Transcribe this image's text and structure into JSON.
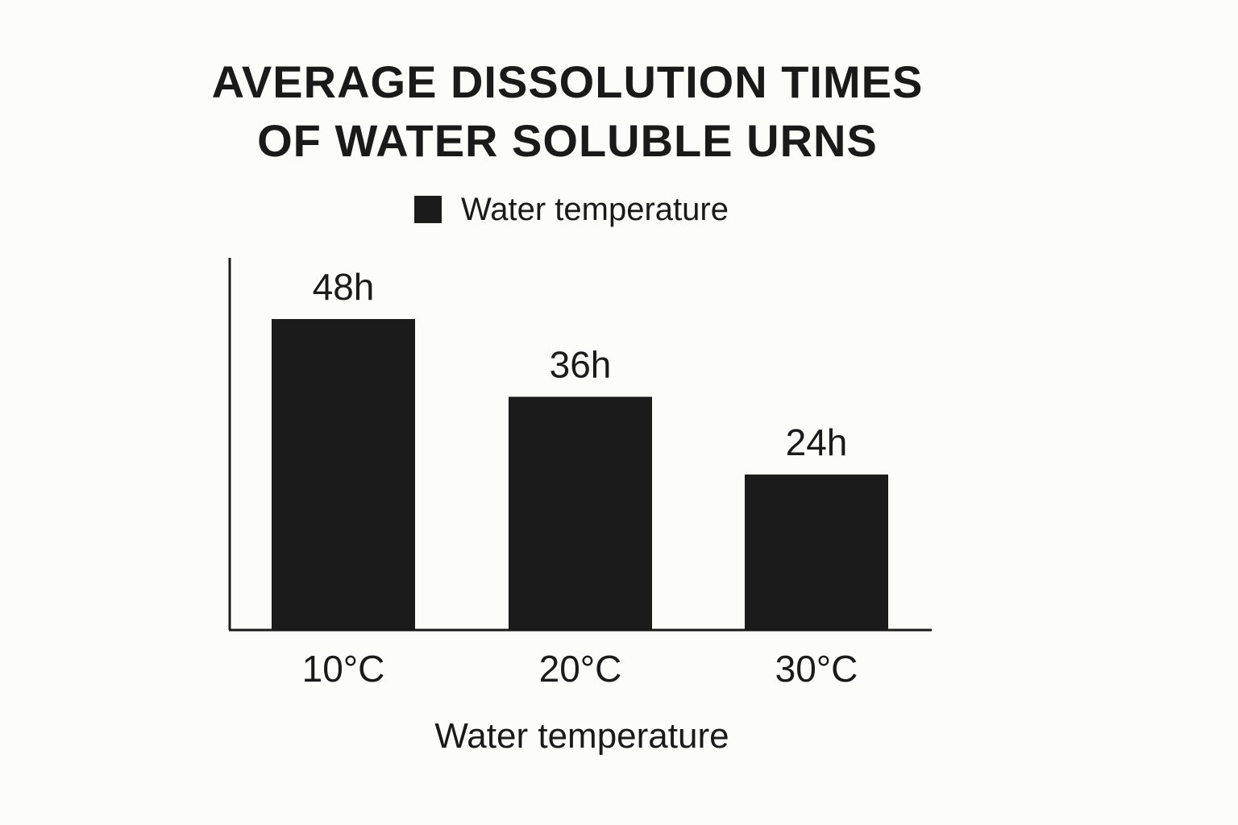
{
  "chart_data": {
    "type": "bar",
    "title": "AVERAGE DISSOLUTION TIMES OF WATER SOLUBLE URNS",
    "title_lines": [
      "AVERAGE DISSOLUTION TIMES",
      "OF WATER SOLUBLE URNS"
    ],
    "legend": {
      "position": "top-center",
      "entries": [
        "Water temperature"
      ]
    },
    "categories": [
      "10°C",
      "20°C",
      "30°C"
    ],
    "series": [
      {
        "name": "Water temperature",
        "values": [
          48,
          36,
          24
        ],
        "labels": [
          "48h",
          "36h",
          "24h"
        ]
      }
    ],
    "xlabel": "Water temperature",
    "ylabel": "",
    "ylim": [
      0,
      58
    ],
    "grid": false,
    "colors": {
      "bar": "#1b1b1b",
      "axis": "#1a1a1a",
      "text": "#1a1a1a",
      "background": "#fcfcf8"
    }
  }
}
